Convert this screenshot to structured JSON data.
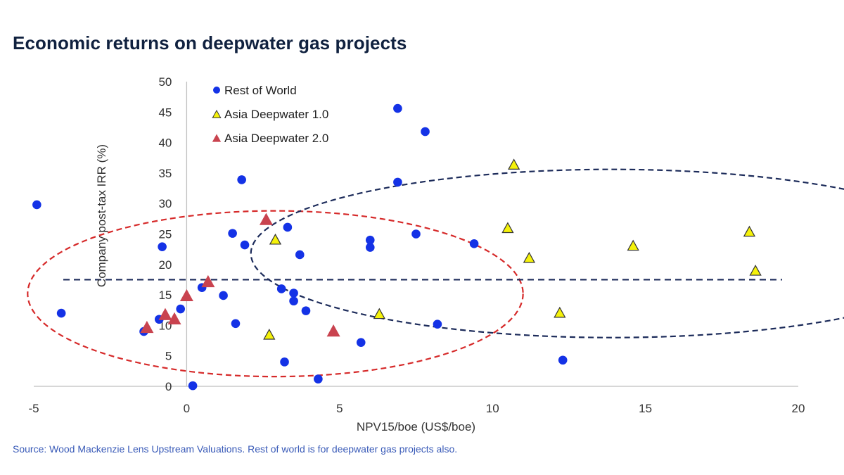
{
  "title": "Economic returns on deepwater gas projects",
  "source": "Source: Wood Mackenzie Lens Upstream Valuations. Rest of world is for deepwater gas projects also.",
  "chart_data": {
    "type": "scatter",
    "title": "Economic returns on deepwater gas projects",
    "xlabel": "NPV15/boe (US$/boe)",
    "ylabel": "Company post-tax IRR (%)",
    "xlim": [
      -5,
      20
    ],
    "ylim": [
      0,
      50
    ],
    "xticks": [
      "-5",
      "0",
      "5",
      "10",
      "15",
      "20"
    ],
    "yticks": [
      "0",
      "5",
      "10",
      "15",
      "20",
      "25",
      "30",
      "35",
      "40",
      "45",
      "50"
    ],
    "threshold_irr": 17.5,
    "series": [
      {
        "name": "Rest of World",
        "marker": "circle",
        "color": "#1432e6",
        "points": [
          [
            -4.9,
            29.8
          ],
          [
            -4.1,
            12.0
          ],
          [
            -0.8,
            22.9
          ],
          [
            -0.9,
            11.0
          ],
          [
            -1.4,
            9.0
          ],
          [
            -0.2,
            12.7
          ],
          [
            0.5,
            16.2
          ],
          [
            0.2,
            0.1
          ],
          [
            1.2,
            14.9
          ],
          [
            1.5,
            25.1
          ],
          [
            1.8,
            33.9
          ],
          [
            1.9,
            23.2
          ],
          [
            1.6,
            10.3
          ],
          [
            3.1,
            16.0
          ],
          [
            3.3,
            26.1
          ],
          [
            3.5,
            15.3
          ],
          [
            3.5,
            14.0
          ],
          [
            3.7,
            21.6
          ],
          [
            3.9,
            12.4
          ],
          [
            3.2,
            4.0
          ],
          [
            4.3,
            1.2
          ],
          [
            5.7,
            7.2
          ],
          [
            6.0,
            24.0
          ],
          [
            6.0,
            22.8
          ],
          [
            6.9,
            45.6
          ],
          [
            6.9,
            33.5
          ],
          [
            7.5,
            25.0
          ],
          [
            7.8,
            41.8
          ],
          [
            8.2,
            10.2
          ],
          [
            9.4,
            23.4
          ],
          [
            12.3,
            4.3
          ]
        ]
      },
      {
        "name": "Asia Deepwater 1.0",
        "marker": "triangle",
        "color": "#f5f20a",
        "stroke": "#333333",
        "points": [
          [
            2.9,
            24.0
          ],
          [
            2.7,
            8.4
          ],
          [
            6.3,
            11.8
          ],
          [
            10.5,
            25.9
          ],
          [
            10.7,
            36.3
          ],
          [
            11.2,
            21.0
          ],
          [
            12.2,
            12.0
          ],
          [
            14.6,
            23.0
          ],
          [
            18.4,
            25.3
          ],
          [
            18.6,
            18.9
          ]
        ]
      },
      {
        "name": "Asia Deepwater 2.0",
        "marker": "triangle",
        "color": "#c9434f",
        "points": [
          [
            -1.3,
            9.6
          ],
          [
            -0.7,
            11.7
          ],
          [
            -0.4,
            11.0
          ],
          [
            0.0,
            14.8
          ],
          [
            0.7,
            17.1
          ],
          [
            2.6,
            27.3
          ],
          [
            4.8,
            9.0
          ]
        ]
      }
    ],
    "annotations": [
      {
        "type": "ellipse",
        "color": "#d62a2a",
        "center": [
          2.9,
          15.2
        ],
        "radii": [
          8.1,
          13.6
        ]
      },
      {
        "type": "ellipse",
        "color": "#1c2b5a",
        "center": [
          13.9,
          21.8
        ],
        "radii": [
          11.8,
          13.8
        ]
      }
    ],
    "legend_position": "top-left"
  }
}
